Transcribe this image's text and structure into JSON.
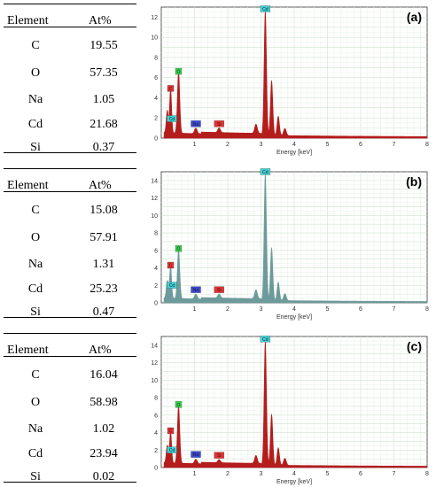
{
  "table_header": {
    "element": "Element",
    "at": "At%"
  },
  "panels": [
    {
      "label": "(a)",
      "rows": [
        [
          "C",
          "19.55"
        ],
        [
          "O",
          "57.35"
        ],
        [
          "Na",
          "1.05"
        ],
        [
          "Cd",
          "21.68"
        ],
        [
          "Si",
          "0.37"
        ]
      ]
    },
    {
      "label": "(b)",
      "rows": [
        [
          "C",
          "15.08"
        ],
        [
          "O",
          "57.91"
        ],
        [
          "Na",
          "1.31"
        ],
        [
          "Cd",
          "25.23"
        ],
        [
          "Si",
          "0.47"
        ]
      ]
    },
    {
      "label": "(c)",
      "rows": [
        [
          "C",
          "16.04"
        ],
        [
          "O",
          "58.98"
        ],
        [
          "Na",
          "1.02"
        ],
        [
          "Cd",
          "23.94"
        ],
        [
          "Si",
          "0.02"
        ]
      ]
    }
  ],
  "chart_data": [
    {
      "type": "area",
      "label": "(a)",
      "xlabel": "Energy [keV]",
      "xlim": [
        0,
        8
      ],
      "ylim": [
        0,
        13
      ],
      "xticks": [
        1,
        2,
        3,
        4,
        5,
        6,
        7,
        8
      ],
      "yticks": [
        0,
        2,
        4,
        6,
        8,
        10,
        12
      ],
      "fill": "#b51c1c",
      "peaks": [
        {
          "x": 0.18,
          "y": 2.2,
          "w": 0.03
        },
        {
          "x": 0.28,
          "y": 4.4,
          "w": 0.03
        },
        {
          "x": 0.52,
          "y": 6.1,
          "w": 0.035
        },
        {
          "x": 1.04,
          "y": 0.55,
          "w": 0.04
        },
        {
          "x": 1.74,
          "y": 0.45,
          "w": 0.04
        },
        {
          "x": 2.85,
          "y": 0.9,
          "w": 0.04
        },
        {
          "x": 3.13,
          "y": 12.3,
          "w": 0.035
        },
        {
          "x": 3.32,
          "y": 5.4,
          "w": 0.035
        },
        {
          "x": 3.52,
          "y": 1.9,
          "w": 0.035
        },
        {
          "x": 3.72,
          "y": 0.7,
          "w": 0.04
        }
      ],
      "markers": [
        {
          "text": "C",
          "x": 0.28,
          "y": 4.4,
          "color": "#e53030"
        },
        {
          "text": "O",
          "x": 0.52,
          "y": 6.1,
          "color": "#35d24a"
        },
        {
          "text": "Cd",
          "x": 0.32,
          "y": 1.4,
          "color": "#3fd1d6"
        },
        {
          "text": "Na",
          "x": 1.04,
          "y": 0.9,
          "color": "#3b47d6"
        },
        {
          "text": "Si",
          "x": 1.74,
          "y": 0.9,
          "color": "#e53030"
        },
        {
          "text": "Cd",
          "x": 3.13,
          "y": 12.3,
          "color": "#3fd1d6"
        }
      ]
    },
    {
      "type": "area",
      "label": "(b)",
      "xlabel": "Energy [keV]",
      "xlim": [
        0,
        8
      ],
      "ylim": [
        0,
        15
      ],
      "xticks": [
        1,
        2,
        3,
        4,
        5,
        6,
        7,
        8
      ],
      "yticks": [
        0,
        2,
        4,
        6,
        8,
        10,
        12,
        14
      ],
      "fill": "#6d9a9a",
      "peaks": [
        {
          "x": 0.18,
          "y": 2.0,
          "w": 0.03
        },
        {
          "x": 0.28,
          "y": 3.7,
          "w": 0.03
        },
        {
          "x": 0.52,
          "y": 5.6,
          "w": 0.035
        },
        {
          "x": 1.04,
          "y": 0.55,
          "w": 0.04
        },
        {
          "x": 1.74,
          "y": 0.45,
          "w": 0.04
        },
        {
          "x": 2.85,
          "y": 1.0,
          "w": 0.04
        },
        {
          "x": 3.13,
          "y": 14.4,
          "w": 0.035
        },
        {
          "x": 3.32,
          "y": 6.0,
          "w": 0.035
        },
        {
          "x": 3.52,
          "y": 2.1,
          "w": 0.035
        },
        {
          "x": 3.72,
          "y": 0.8,
          "w": 0.04
        }
      ],
      "markers": [
        {
          "text": "C",
          "x": 0.28,
          "y": 3.7,
          "color": "#e53030"
        },
        {
          "text": "O",
          "x": 0.52,
          "y": 5.6,
          "color": "#35d24a"
        },
        {
          "text": "Cd",
          "x": 0.32,
          "y": 1.4,
          "color": "#3fd1d6"
        },
        {
          "text": "Na",
          "x": 1.04,
          "y": 0.9,
          "color": "#3b47d6"
        },
        {
          "text": "Si",
          "x": 1.74,
          "y": 0.9,
          "color": "#e53030"
        },
        {
          "text": "Cd",
          "x": 3.13,
          "y": 14.4,
          "color": "#3fd1d6"
        }
      ]
    },
    {
      "type": "area",
      "label": "(c)",
      "xlabel": "Energy [keV]",
      "xlim": [
        0,
        8
      ],
      "ylim": [
        0,
        15
      ],
      "xticks": [
        1,
        2,
        3,
        4,
        5,
        6,
        7,
        8
      ],
      "yticks": [
        0,
        2,
        4,
        6,
        8,
        10,
        12,
        14
      ],
      "fill": "#b51c1c",
      "peaks": [
        {
          "x": 0.18,
          "y": 2.0,
          "w": 0.03
        },
        {
          "x": 0.28,
          "y": 3.6,
          "w": 0.03
        },
        {
          "x": 0.52,
          "y": 6.6,
          "w": 0.035
        },
        {
          "x": 1.04,
          "y": 0.5,
          "w": 0.04
        },
        {
          "x": 1.74,
          "y": 0.35,
          "w": 0.04
        },
        {
          "x": 2.85,
          "y": 0.9,
          "w": 0.04
        },
        {
          "x": 3.13,
          "y": 14.1,
          "w": 0.035
        },
        {
          "x": 3.32,
          "y": 5.8,
          "w": 0.035
        },
        {
          "x": 3.52,
          "y": 2.0,
          "w": 0.035
        },
        {
          "x": 3.72,
          "y": 0.8,
          "w": 0.04
        }
      ],
      "markers": [
        {
          "text": "C",
          "x": 0.28,
          "y": 3.6,
          "color": "#e53030"
        },
        {
          "text": "O",
          "x": 0.52,
          "y": 6.6,
          "color": "#35d24a"
        },
        {
          "text": "Cd",
          "x": 0.32,
          "y": 1.4,
          "color": "#3fd1d6"
        },
        {
          "text": "Na",
          "x": 1.04,
          "y": 0.9,
          "color": "#3b47d6"
        },
        {
          "text": "Si",
          "x": 1.74,
          "y": 0.8,
          "color": "#e53030"
        },
        {
          "text": "Cd",
          "x": 3.13,
          "y": 14.1,
          "color": "#3fd1d6"
        }
      ]
    }
  ]
}
